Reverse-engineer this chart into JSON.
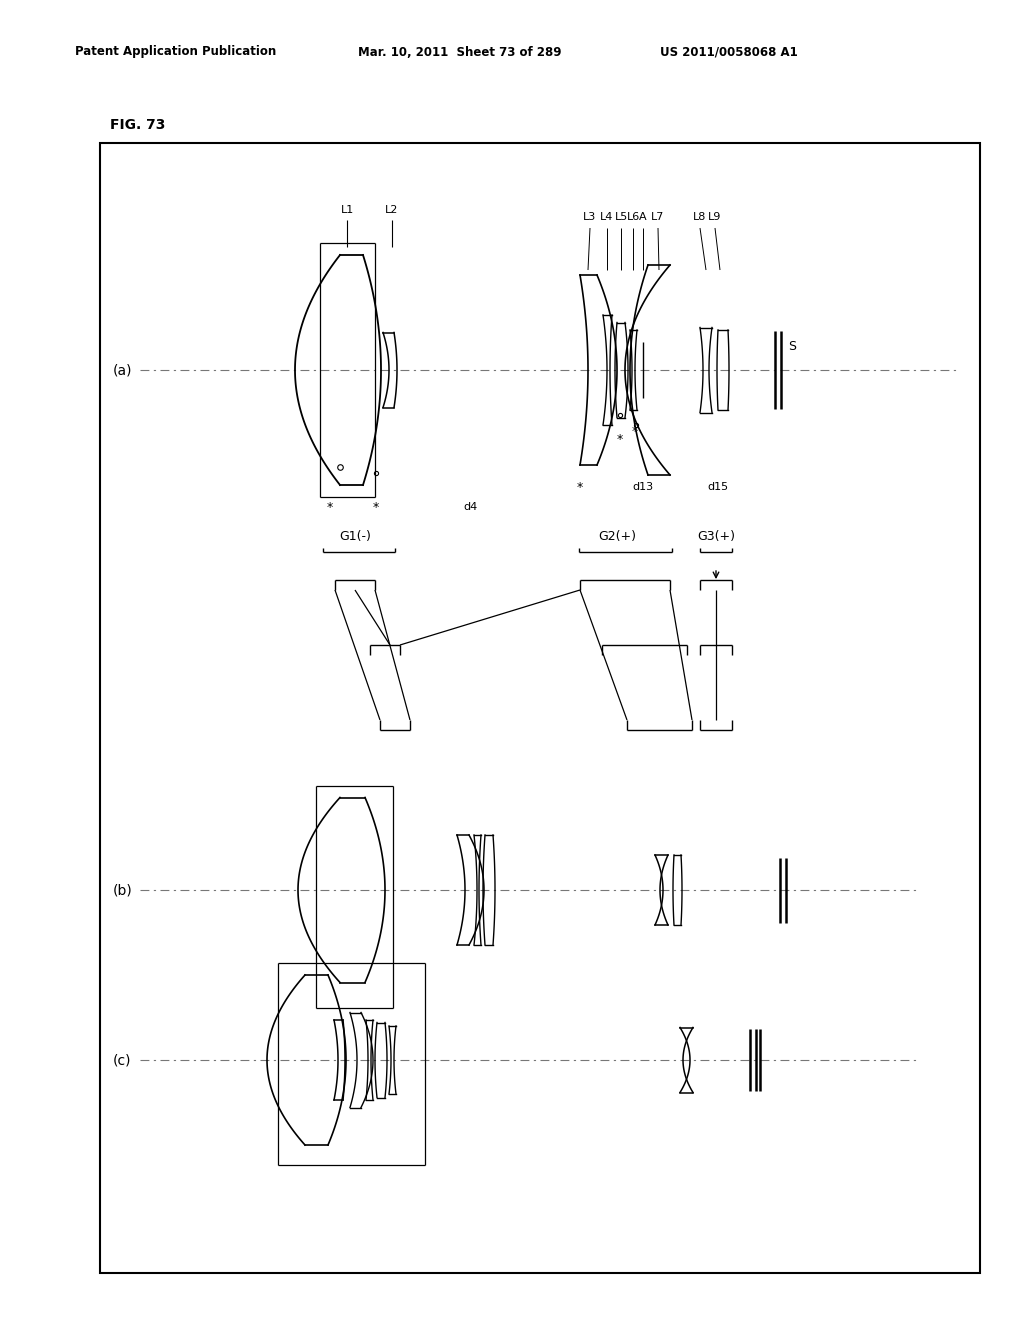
{
  "header_left": "Patent Application Publication",
  "header_mid": "Mar. 10, 2011  Sheet 73 of 289",
  "header_right": "US 2011/0058068 A1",
  "fig_label": "FIG. 73",
  "bg_color": "#ffffff",
  "line_color": "#000000"
}
